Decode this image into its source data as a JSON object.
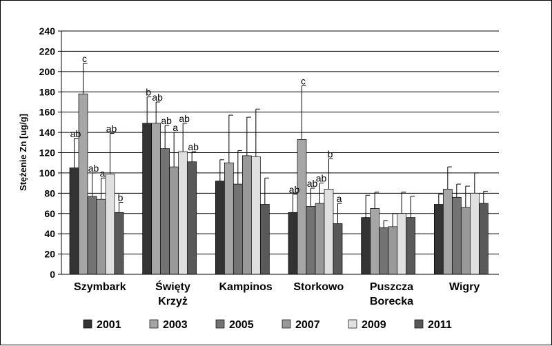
{
  "chart_data": {
    "type": "bar",
    "ylabel": "Stężenie Zn [ug/g]",
    "ylim": [
      0,
      240
    ],
    "yticks": [
      0,
      20,
      40,
      60,
      80,
      100,
      120,
      140,
      160,
      180,
      200,
      220,
      240
    ],
    "grid": true,
    "legend_position": "bottom",
    "categories": [
      [
        "Szymbark"
      ],
      [
        "Święty",
        "Krzyż"
      ],
      [
        "Kampinos"
      ],
      [
        "Storkowo"
      ],
      [
        "Puszcza",
        "Borecka"
      ],
      [
        "Wigry"
      ]
    ],
    "series": [
      {
        "name": "2001",
        "color": "#333333",
        "values": [
          105,
          149,
          92,
          61,
          56,
          69
        ],
        "errors": [
          29,
          26,
          21,
          18,
          22,
          10
        ],
        "labels": [
          "ab",
          "b",
          "",
          "ab",
          "",
          ""
        ]
      },
      {
        "name": "2003",
        "color": "#a6a6a6",
        "values": [
          178,
          149,
          110,
          133,
          65,
          84
        ],
        "errors": [
          30,
          21,
          47,
          53,
          16,
          22
        ],
        "labels": [
          "c",
          "ab",
          "",
          "c",
          "",
          ""
        ]
      },
      {
        "name": "2005",
        "color": "#737373",
        "values": [
          77,
          124,
          89,
          67,
          46,
          76
        ],
        "errors": [
          23,
          23,
          33,
          18,
          7,
          13
        ],
        "labels": [
          "ab",
          "ab",
          "",
          "ab",
          "",
          ""
        ]
      },
      {
        "name": "2007",
        "color": "#999999",
        "values": [
          74,
          106,
          117,
          70,
          47,
          66
        ],
        "errors": [
          21,
          34,
          38,
          20,
          13,
          21
        ],
        "labels": [
          "a",
          "a",
          "",
          "ab",
          "",
          ""
        ]
      },
      {
        "name": "2009",
        "color": "#e0e0e0",
        "values": [
          99,
          121,
          116,
          84,
          60,
          80
        ],
        "errors": [
          40,
          28,
          47,
          30,
          21,
          20
        ],
        "labels": [
          "ab",
          "ab",
          "",
          "b",
          "",
          ""
        ]
      },
      {
        "name": "2011",
        "color": "#595959",
        "values": [
          61,
          111,
          69,
          50,
          56,
          70
        ],
        "errors": [
          10,
          10,
          26,
          20,
          21,
          12
        ],
        "labels": [
          "b",
          "ab",
          "",
          "a",
          "",
          ""
        ]
      }
    ]
  }
}
